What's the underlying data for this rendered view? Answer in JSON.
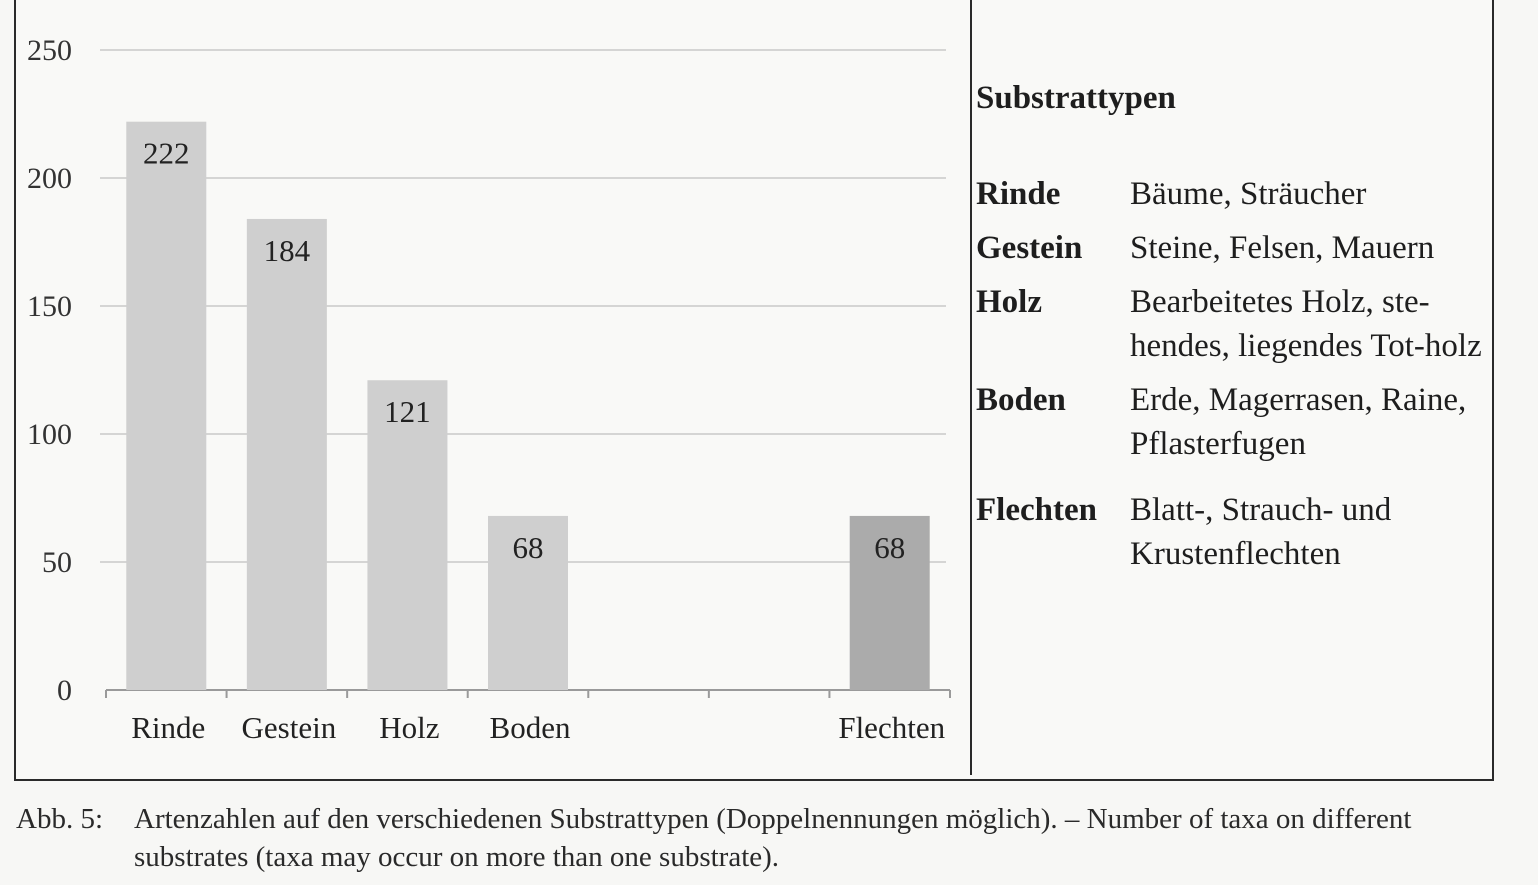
{
  "chart_data": {
    "type": "bar",
    "categories": [
      "Rinde",
      "Gestein",
      "Holz",
      "Boden",
      "",
      "",
      "Flechten"
    ],
    "values": [
      222,
      184,
      121,
      68,
      null,
      null,
      68
    ],
    "value_labels": [
      "222",
      "184",
      "121",
      "68",
      "",
      "",
      "68"
    ],
    "bar_colors": [
      "#cfcfcf",
      "#cfcfcf",
      "#cfcfcf",
      "#cfcfcf",
      "",
      "",
      "#ababab"
    ],
    "yticks": [
      "0",
      "50",
      "100",
      "150",
      "200",
      "250"
    ],
    "ylim": [
      0,
      250
    ],
    "grid": true,
    "title": "",
    "xlabel": "",
    "ylabel": ""
  },
  "legend": {
    "title": "Substrattypen",
    "items": [
      {
        "term": "Rinde",
        "desc": "Bäume, Sträucher"
      },
      {
        "term": "Gestein",
        "desc": "Steine, Felsen, Mauern"
      },
      {
        "term": "Holz",
        "desc": "Bearbeitetes Holz, ste-hendes, liegendes Tot-holz"
      },
      {
        "term": "Boden",
        "desc": "Erde, Magerrasen, Raine, Pflasterfugen"
      },
      {
        "term": "Flechten",
        "desc": "Blatt-, Strauch- und Krustenflechten"
      }
    ]
  },
  "caption": {
    "number": "Abb. 5:",
    "text": "Artenzahlen auf den verschiedenen Substrattypen (Doppelnennungen möglich). – Number of taxa on different substrates (taxa may occur on more than one substrate)."
  }
}
